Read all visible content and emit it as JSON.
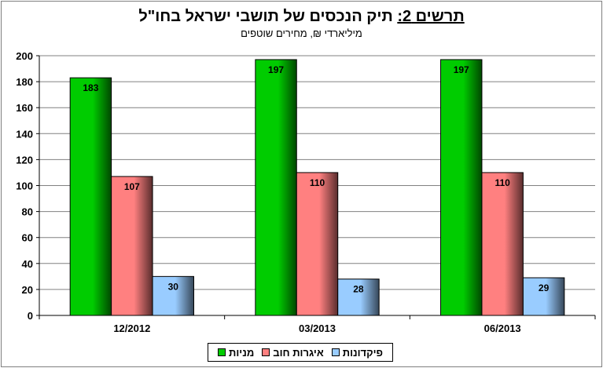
{
  "chart_data": {
    "type": "bar",
    "title_prefix": "תרשים 2:",
    "title_text": "תיק הנכסים של תושבי ישראל בחו\"ל",
    "subtitle": "מיליארדי ₪, מחירים שוטפים",
    "categories": [
      "12/2012",
      "03/2013",
      "06/2013"
    ],
    "series": [
      {
        "name": "מניות",
        "values": [
          183,
          197,
          197
        ],
        "color": "#00cc00"
      },
      {
        "name": "איגרות חוב",
        "values": [
          107,
          110,
          110
        ],
        "color": "#ff8080"
      },
      {
        "name": "פיקדונות",
        "values": [
          30,
          28,
          29
        ],
        "color": "#99ccff"
      }
    ],
    "ylim": [
      0,
      200
    ],
    "yticks": [
      0,
      20,
      40,
      60,
      80,
      100,
      120,
      140,
      160,
      180,
      200
    ],
    "grid": true,
    "legend_position": "bottom"
  }
}
